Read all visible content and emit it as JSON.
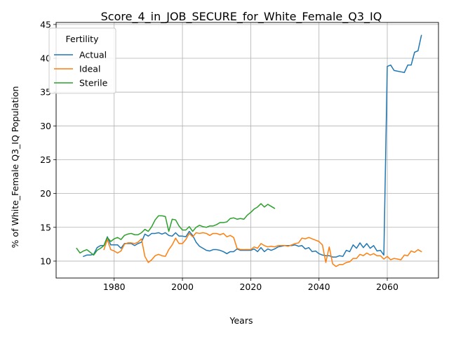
{
  "chart_data": {
    "type": "line",
    "title": "Score_4_in_JOB_SECURE_for_White_Female_Q3_IQ",
    "xlabel": "Years",
    "ylabel": "% of White_Female Q3_IQ Population",
    "xlim": [
      1963,
      2075
    ],
    "ylim": [
      7.5,
      45.3
    ],
    "xticks": [
      1980,
      2000,
      2020,
      2040,
      2060
    ],
    "yticks": [
      10,
      15,
      20,
      25,
      30,
      35,
      40,
      45
    ],
    "grid": true,
    "legend": {
      "title": "Fertility",
      "position": "upper left"
    },
    "series": [
      {
        "name": "Actual",
        "color": "#1f77b4",
        "points": [
          [
            1971,
            10.7
          ],
          [
            1972,
            10.9
          ],
          [
            1973,
            10.9
          ],
          [
            1974,
            11.0
          ],
          [
            1975,
            12.0
          ],
          [
            1976,
            12.3
          ],
          [
            1977,
            12.3
          ],
          [
            1978,
            13.6
          ],
          [
            1979,
            12.4
          ],
          [
            1980,
            12.4
          ],
          [
            1981,
            12.4
          ],
          [
            1982,
            11.9
          ],
          [
            1983,
            12.6
          ],
          [
            1984,
            12.6
          ],
          [
            1985,
            12.6
          ],
          [
            1986,
            12.3
          ],
          [
            1987,
            12.6
          ],
          [
            1988,
            12.8
          ],
          [
            1989,
            14.0
          ],
          [
            1990,
            13.7
          ],
          [
            1991,
            14.1
          ],
          [
            1992,
            14.1
          ],
          [
            1993,
            14.2
          ],
          [
            1994,
            14.0
          ],
          [
            1995,
            14.2
          ],
          [
            1996,
            13.8
          ],
          [
            1997,
            13.7
          ],
          [
            1998,
            14.2
          ],
          [
            1999,
            13.7
          ],
          [
            2000,
            13.7
          ],
          [
            2001,
            13.6
          ],
          [
            2002,
            14.4
          ],
          [
            2003,
            13.8
          ],
          [
            2004,
            12.8
          ],
          [
            2005,
            12.2
          ],
          [
            2006,
            11.9
          ],
          [
            2007,
            11.6
          ],
          [
            2008,
            11.5
          ],
          [
            2009,
            11.7
          ],
          [
            2010,
            11.7
          ],
          [
            2011,
            11.6
          ],
          [
            2012,
            11.4
          ],
          [
            2013,
            11.1
          ],
          [
            2014,
            11.4
          ],
          [
            2015,
            11.4
          ],
          [
            2016,
            11.8
          ],
          [
            2017,
            11.6
          ],
          [
            2018,
            11.6
          ],
          [
            2019,
            11.6
          ],
          [
            2020,
            11.6
          ],
          [
            2021,
            11.8
          ],
          [
            2022,
            11.4
          ],
          [
            2023,
            12.0
          ],
          [
            2024,
            11.4
          ],
          [
            2025,
            11.8
          ],
          [
            2026,
            11.6
          ],
          [
            2027,
            11.8
          ],
          [
            2028,
            12.1
          ],
          [
            2029,
            12.2
          ],
          [
            2030,
            12.3
          ],
          [
            2031,
            12.3
          ],
          [
            2032,
            12.3
          ],
          [
            2033,
            12.4
          ],
          [
            2034,
            12.2
          ],
          [
            2035,
            12.3
          ],
          [
            2036,
            11.8
          ],
          [
            2037,
            12.0
          ],
          [
            2038,
            11.4
          ],
          [
            2039,
            11.5
          ],
          [
            2040,
            11.1
          ],
          [
            2041,
            10.9
          ],
          [
            2042,
            10.8
          ],
          [
            2043,
            10.8
          ],
          [
            2044,
            10.6
          ],
          [
            2045,
            10.6
          ],
          [
            2046,
            10.8
          ],
          [
            2047,
            10.7
          ],
          [
            2048,
            11.6
          ],
          [
            2049,
            11.4
          ],
          [
            2050,
            12.4
          ],
          [
            2051,
            11.9
          ],
          [
            2052,
            12.7
          ],
          [
            2053,
            12.0
          ],
          [
            2054,
            12.6
          ],
          [
            2055,
            11.9
          ],
          [
            2056,
            12.3
          ],
          [
            2057,
            11.5
          ],
          [
            2058,
            11.6
          ],
          [
            2059,
            10.9
          ],
          [
            2060,
            38.8
          ],
          [
            2061,
            39.0
          ],
          [
            2062,
            38.2
          ],
          [
            2063,
            38.1
          ],
          [
            2064,
            38.0
          ],
          [
            2065,
            37.9
          ],
          [
            2066,
            39.0
          ],
          [
            2067,
            39.0
          ],
          [
            2068,
            40.9
          ],
          [
            2069,
            41.1
          ],
          [
            2070,
            43.4
          ]
        ]
      },
      {
        "name": "Ideal",
        "color": "#ff7f0e",
        "points": [
          [
            1977,
            11.7
          ],
          [
            1978,
            13.2
          ],
          [
            1979,
            11.7
          ],
          [
            1980,
            11.5
          ],
          [
            1981,
            11.2
          ],
          [
            1982,
            11.5
          ],
          [
            1983,
            12.5
          ],
          [
            1984,
            12.7
          ],
          [
            1985,
            12.7
          ],
          [
            1986,
            12.6
          ],
          [
            1987,
            12.8
          ],
          [
            1988,
            13.3
          ],
          [
            1989,
            10.7
          ],
          [
            1990,
            9.8
          ],
          [
            1991,
            10.2
          ],
          [
            1992,
            10.8
          ],
          [
            1993,
            11.0
          ],
          [
            1994,
            10.8
          ],
          [
            1995,
            10.7
          ],
          [
            1996,
            11.7
          ],
          [
            1997,
            12.4
          ],
          [
            1998,
            13.4
          ],
          [
            1999,
            12.6
          ],
          [
            2000,
            12.6
          ],
          [
            2001,
            13.2
          ],
          [
            2002,
            14.1
          ],
          [
            2003,
            13.6
          ],
          [
            2004,
            14.2
          ],
          [
            2005,
            14.1
          ],
          [
            2006,
            14.2
          ],
          [
            2007,
            14.1
          ],
          [
            2008,
            13.8
          ],
          [
            2009,
            14.1
          ],
          [
            2010,
            14.1
          ],
          [
            2011,
            13.9
          ],
          [
            2012,
            14.1
          ],
          [
            2013,
            13.6
          ],
          [
            2014,
            13.8
          ],
          [
            2015,
            13.5
          ],
          [
            2016,
            11.9
          ],
          [
            2017,
            11.7
          ],
          [
            2018,
            11.7
          ],
          [
            2019,
            11.7
          ],
          [
            2020,
            11.7
          ],
          [
            2021,
            12.1
          ],
          [
            2022,
            11.9
          ],
          [
            2023,
            12.6
          ],
          [
            2024,
            12.3
          ],
          [
            2025,
            12.1
          ],
          [
            2026,
            12.2
          ],
          [
            2027,
            12.1
          ],
          [
            2028,
            12.3
          ],
          [
            2029,
            12.3
          ],
          [
            2030,
            12.3
          ],
          [
            2031,
            12.2
          ],
          [
            2032,
            12.4
          ],
          [
            2033,
            12.6
          ],
          [
            2034,
            12.7
          ],
          [
            2035,
            13.4
          ],
          [
            2036,
            13.3
          ],
          [
            2037,
            13.5
          ],
          [
            2038,
            13.3
          ],
          [
            2039,
            13.1
          ],
          [
            2040,
            12.9
          ],
          [
            2041,
            12.4
          ],
          [
            2042,
            9.8
          ],
          [
            2043,
            12.1
          ],
          [
            2044,
            9.6
          ],
          [
            2045,
            9.2
          ],
          [
            2046,
            9.5
          ],
          [
            2047,
            9.5
          ],
          [
            2048,
            9.8
          ],
          [
            2049,
            9.9
          ],
          [
            2050,
            10.4
          ],
          [
            2051,
            10.4
          ],
          [
            2052,
            11.0
          ],
          [
            2053,
            10.8
          ],
          [
            2054,
            11.2
          ],
          [
            2055,
            10.9
          ],
          [
            2056,
            11.1
          ],
          [
            2057,
            10.8
          ],
          [
            2058,
            10.8
          ],
          [
            2059,
            10.3
          ],
          [
            2060,
            10.7
          ],
          [
            2061,
            10.2
          ],
          [
            2062,
            10.4
          ],
          [
            2063,
            10.3
          ],
          [
            2064,
            10.2
          ],
          [
            2065,
            10.9
          ],
          [
            2066,
            10.8
          ],
          [
            2067,
            11.5
          ],
          [
            2068,
            11.3
          ],
          [
            2069,
            11.7
          ],
          [
            2070,
            11.4
          ]
        ]
      },
      {
        "name": "Sterile",
        "color": "#2ca02c",
        "points": [
          [
            1969,
            11.9
          ],
          [
            1970,
            11.2
          ],
          [
            1971,
            11.5
          ],
          [
            1972,
            11.7
          ],
          [
            1973,
            11.3
          ],
          [
            1974,
            10.9
          ],
          [
            1975,
            11.6
          ],
          [
            1976,
            11.9
          ],
          [
            1977,
            12.3
          ],
          [
            1978,
            13.5
          ],
          [
            1979,
            12.9
          ],
          [
            1980,
            13.3
          ],
          [
            1981,
            13.5
          ],
          [
            1982,
            13.2
          ],
          [
            1983,
            13.8
          ],
          [
            1984,
            14.0
          ],
          [
            1985,
            14.1
          ],
          [
            1986,
            13.9
          ],
          [
            1987,
            13.9
          ],
          [
            1988,
            14.2
          ],
          [
            1989,
            14.7
          ],
          [
            1990,
            14.4
          ],
          [
            1991,
            15.1
          ],
          [
            1992,
            16.1
          ],
          [
            1993,
            16.7
          ],
          [
            1994,
            16.7
          ],
          [
            1995,
            16.6
          ],
          [
            1996,
            14.4
          ],
          [
            1997,
            16.2
          ],
          [
            1998,
            16.1
          ],
          [
            1999,
            15.2
          ],
          [
            2000,
            14.6
          ],
          [
            2001,
            14.6
          ],
          [
            2002,
            15.1
          ],
          [
            2003,
            14.4
          ],
          [
            2004,
            15.0
          ],
          [
            2005,
            15.3
          ],
          [
            2006,
            15.1
          ],
          [
            2007,
            15.0
          ],
          [
            2008,
            15.2
          ],
          [
            2009,
            15.2
          ],
          [
            2010,
            15.4
          ],
          [
            2011,
            15.7
          ],
          [
            2012,
            15.7
          ],
          [
            2013,
            15.8
          ],
          [
            2014,
            16.3
          ],
          [
            2015,
            16.4
          ],
          [
            2016,
            16.2
          ],
          [
            2017,
            16.3
          ],
          [
            2018,
            16.2
          ],
          [
            2019,
            16.8
          ],
          [
            2020,
            17.2
          ],
          [
            2021,
            17.7
          ],
          [
            2022,
            18.0
          ],
          [
            2023,
            18.5
          ],
          [
            2024,
            18.0
          ],
          [
            2025,
            18.4
          ],
          [
            2026,
            18.1
          ],
          [
            2027,
            17.8
          ]
        ]
      }
    ]
  }
}
